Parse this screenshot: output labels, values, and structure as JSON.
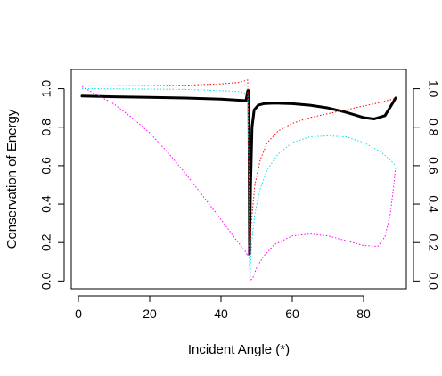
{
  "chart_data": {
    "type": "line",
    "xlabel": "Incident Angle (*)",
    "ylabel": "Conservation of Energy",
    "xlim": [
      -2,
      92
    ],
    "ylim": [
      -0.04,
      1.1
    ],
    "x_ticks": [
      0,
      20,
      40,
      60,
      80
    ],
    "y_ticks": [
      0.0,
      0.2,
      0.4,
      0.6,
      0.8,
      1.0
    ],
    "y_tick_labels": [
      "0.0",
      "0.2",
      "0.4",
      "0.6",
      "0.8",
      "1.0"
    ],
    "right_axis_ticks": [
      0.0,
      0.2,
      0.4,
      0.6,
      0.8,
      1.0
    ],
    "grid": false,
    "legend": "none",
    "series": [
      {
        "color": "#000000",
        "style": "solid-thick",
        "points": [
          [
            1,
            0.962
          ],
          [
            10,
            0.958
          ],
          [
            20,
            0.955
          ],
          [
            30,
            0.952
          ],
          [
            40,
            0.946
          ],
          [
            45,
            0.94
          ],
          [
            47,
            0.938
          ],
          [
            47.5,
            0.99
          ],
          [
            47.8,
            0.99
          ],
          [
            48.0,
            0.14
          ],
          [
            48.3,
            0.5
          ],
          [
            48.7,
            0.8
          ],
          [
            49.3,
            0.89
          ],
          [
            50.5,
            0.915
          ],
          [
            52,
            0.922
          ],
          [
            55,
            0.925
          ],
          [
            60,
            0.922
          ],
          [
            65,
            0.914
          ],
          [
            70,
            0.9
          ],
          [
            75,
            0.878
          ],
          [
            80,
            0.85
          ],
          [
            83,
            0.843
          ],
          [
            86,
            0.86
          ],
          [
            88,
            0.92
          ],
          [
            89,
            0.952
          ]
        ]
      },
      {
        "color": "#ff0000",
        "style": "dotted",
        "points": [
          [
            1,
            1.015
          ],
          [
            10,
            1.015
          ],
          [
            20,
            1.016
          ],
          [
            30,
            1.018
          ],
          [
            40,
            1.025
          ],
          [
            45,
            1.032
          ],
          [
            47.5,
            1.045
          ],
          [
            47.8,
            0.5
          ],
          [
            48.0,
            0.14
          ],
          [
            48.5,
            0.3
          ],
          [
            49.5,
            0.5
          ],
          [
            51,
            0.63
          ],
          [
            53,
            0.72
          ],
          [
            56,
            0.78
          ],
          [
            60,
            0.82
          ],
          [
            65,
            0.85
          ],
          [
            70,
            0.87
          ],
          [
            75,
            0.89
          ],
          [
            80,
            0.91
          ],
          [
            85,
            0.93
          ],
          [
            88,
            0.945
          ],
          [
            89,
            0.95
          ]
        ]
      },
      {
        "color": "#00e5ee",
        "style": "dotted",
        "points": [
          [
            1,
            1.0
          ],
          [
            10,
            0.999
          ],
          [
            20,
            0.998
          ],
          [
            30,
            0.996
          ],
          [
            40,
            0.99
          ],
          [
            45,
            0.985
          ],
          [
            47.5,
            0.975
          ],
          [
            47.9,
            0.5
          ],
          [
            48.1,
            0.0
          ],
          [
            48.6,
            0.2
          ],
          [
            49.5,
            0.35
          ],
          [
            51,
            0.48
          ],
          [
            53,
            0.58
          ],
          [
            56,
            0.66
          ],
          [
            60,
            0.72
          ],
          [
            65,
            0.75
          ],
          [
            70,
            0.755
          ],
          [
            75,
            0.75
          ],
          [
            80,
            0.72
          ],
          [
            85,
            0.67
          ],
          [
            88,
            0.62
          ],
          [
            89,
            0.6
          ]
        ]
      },
      {
        "color": "#ff00ff",
        "style": "dotted",
        "points": [
          [
            1,
            1.01
          ],
          [
            5,
            0.97
          ],
          [
            10,
            0.92
          ],
          [
            15,
            0.85
          ],
          [
            20,
            0.77
          ],
          [
            25,
            0.67
          ],
          [
            30,
            0.56
          ],
          [
            35,
            0.44
          ],
          [
            40,
            0.32
          ],
          [
            44,
            0.22
          ],
          [
            47,
            0.15
          ],
          [
            47.5,
            0.13
          ],
          [
            47.9,
            0.2
          ],
          [
            48.2,
            0.0
          ],
          [
            49,
            0.02
          ],
          [
            50,
            0.07
          ],
          [
            52,
            0.13
          ],
          [
            55,
            0.19
          ],
          [
            60,
            0.235
          ],
          [
            65,
            0.245
          ],
          [
            70,
            0.235
          ],
          [
            75,
            0.21
          ],
          [
            80,
            0.185
          ],
          [
            84,
            0.18
          ],
          [
            86,
            0.23
          ],
          [
            87.5,
            0.35
          ],
          [
            88.5,
            0.5
          ],
          [
            89,
            0.6
          ]
        ]
      }
    ]
  }
}
